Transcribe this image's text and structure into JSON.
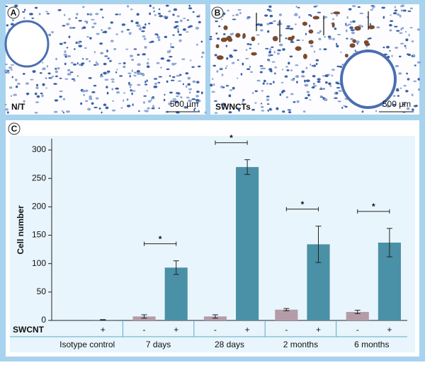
{
  "panels": [
    {
      "letter": "A",
      "label": "N/T",
      "scale": "500 µm"
    },
    {
      "letter": "B",
      "label": "SWNCTs",
      "scale": "500 µm"
    }
  ],
  "chart_data": {
    "type": "bar",
    "letter": "C",
    "ylabel": "Cell number",
    "row_label": "SWCNT",
    "categories": [
      "Isotype control",
      "7 days",
      "28 days",
      "2 months",
      "6 months"
    ],
    "series": [
      {
        "name": "-",
        "color": "#b39ca8",
        "values": [
          null,
          7,
          7,
          19,
          15
        ],
        "errors": [
          null,
          3,
          3,
          2,
          3
        ]
      },
      {
        "name": "+",
        "color": "#4a90a6",
        "values": [
          1,
          93,
          270,
          134,
          137
        ],
        "errors": [
          0.5,
          12,
          13,
          32,
          25
        ]
      }
    ],
    "significance": [
      null,
      "*",
      "*",
      "*",
      "*"
    ],
    "ylim": [
      0,
      320
    ],
    "yticks": [
      0,
      50,
      100,
      150,
      200,
      250,
      300
    ]
  }
}
